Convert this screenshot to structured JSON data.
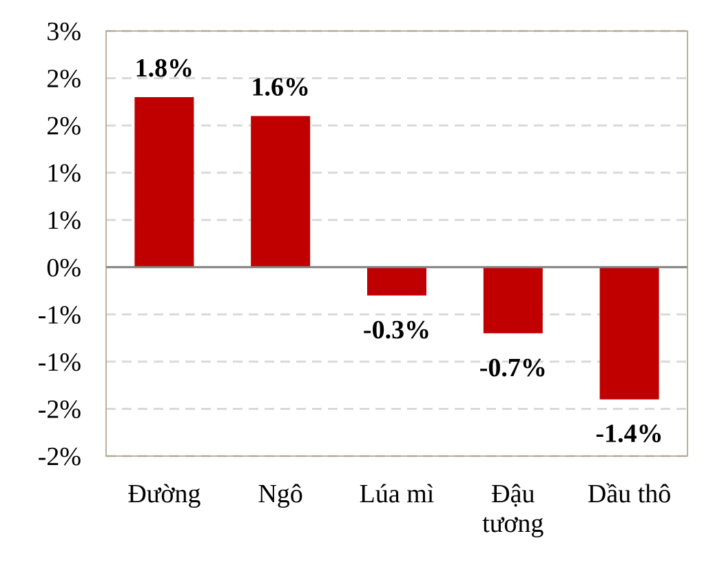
{
  "chart_data": {
    "type": "bar",
    "categories": [
      [
        "Đường"
      ],
      [
        "Ngô"
      ],
      [
        "Lúa mì"
      ],
      [
        "Đậu",
        "tương"
      ],
      [
        "Dầu thô"
      ]
    ],
    "values": [
      1.8,
      1.6,
      -0.3,
      -0.7,
      -1.4
    ],
    "data_labels": [
      "1.8%",
      "1.6%",
      "-0.3%",
      "-0.7%",
      "-1.4%"
    ],
    "ylim": [
      -2.0,
      2.5
    ],
    "y_ticks": [
      {
        "value": 2.5,
        "label": "3%"
      },
      {
        "value": 2.0,
        "label": "2%"
      },
      {
        "value": 1.5,
        "label": "2%"
      },
      {
        "value": 1.0,
        "label": "1%"
      },
      {
        "value": 0.5,
        "label": "1%"
      },
      {
        "value": 0.0,
        "label": "0%"
      },
      {
        "value": -0.5,
        "label": "-1%"
      },
      {
        "value": -1.0,
        "label": "-1%"
      },
      {
        "value": -1.5,
        "label": "-2%"
      },
      {
        "value": -2.0,
        "label": "-2%"
      }
    ],
    "grid": true,
    "legend": "none",
    "colors": {
      "bar": "#c00000",
      "grid": "#d9d9d9",
      "zero_line": "#808080",
      "frame": "#a6987a"
    }
  }
}
